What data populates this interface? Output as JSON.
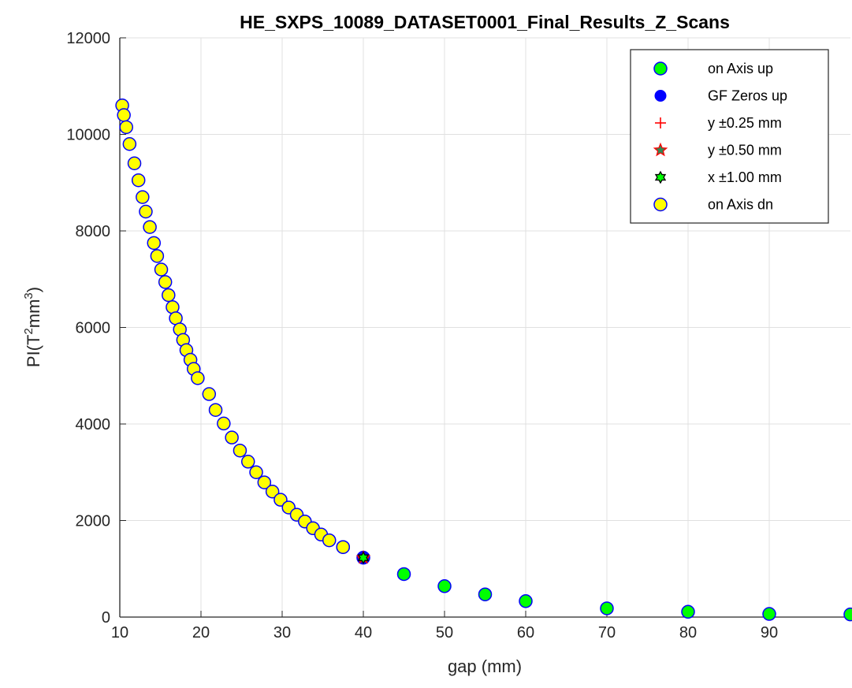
{
  "chart_data": {
    "type": "scatter",
    "title": "HE_SXPS_10089_DATASET0001_Final_Results_Z_Scans",
    "xlabel": "gap (mm)",
    "ylabel_main": "PI(T",
    "ylabel_sup1": "2",
    "ylabel_mid": "mm",
    "ylabel_sup2": "3",
    "ylabel_end": ")",
    "xlim": [
      10,
      100
    ],
    "ylim": [
      0,
      12000
    ],
    "xticks": [
      10,
      20,
      30,
      40,
      50,
      60,
      70,
      80,
      90
    ],
    "yticks": [
      0,
      2000,
      4000,
      6000,
      8000,
      10000,
      12000
    ],
    "grid": true,
    "legend_position": "top-right",
    "colors": {
      "green": "#00ff00",
      "blue": "#0000ff",
      "yellow": "#ffff00",
      "red": "#ff0000",
      "dark_green": "#006400",
      "grid": "#e0e0e0",
      "axis": "#262626"
    },
    "series": [
      {
        "name": "on Axis up",
        "marker": "circle-green",
        "points": [
          [
            37.5,
            1450
          ],
          [
            40,
            1230
          ],
          [
            45,
            890
          ],
          [
            50,
            640
          ],
          [
            55,
            470
          ],
          [
            60,
            330
          ],
          [
            70,
            180
          ],
          [
            80,
            110
          ],
          [
            90,
            65
          ],
          [
            100,
            55
          ]
        ]
      },
      {
        "name": "GF Zeros up",
        "marker": "dot-blue",
        "points": [
          [
            40,
            1230
          ]
        ]
      },
      {
        "name": "y ±0.25 mm",
        "marker": "plus-red",
        "points": [
          [
            40,
            1230
          ]
        ]
      },
      {
        "name": "y ±0.50 mm",
        "marker": "star-red",
        "points": [
          [
            40,
            1230
          ]
        ]
      },
      {
        "name": "x ±1.00 mm",
        "marker": "hexagram-green",
        "points": [
          [
            40,
            1230
          ]
        ]
      },
      {
        "name": "on Axis dn",
        "marker": "circle-yellow",
        "points": [
          [
            10.3,
            10600
          ],
          [
            10.5,
            10400
          ],
          [
            10.8,
            10150
          ],
          [
            11.2,
            9800
          ],
          [
            11.8,
            9400
          ],
          [
            12.3,
            9050
          ],
          [
            12.8,
            8700
          ],
          [
            13.2,
            8400
          ],
          [
            13.7,
            8080
          ],
          [
            14.2,
            7750
          ],
          [
            14.6,
            7480
          ],
          [
            15.1,
            7200
          ],
          [
            15.6,
            6940
          ],
          [
            16.0,
            6670
          ],
          [
            16.5,
            6420
          ],
          [
            16.9,
            6190
          ],
          [
            17.4,
            5960
          ],
          [
            17.8,
            5740
          ],
          [
            18.2,
            5530
          ],
          [
            18.7,
            5330
          ],
          [
            19.1,
            5140
          ],
          [
            19.6,
            4950
          ],
          [
            21.0,
            4620
          ],
          [
            21.8,
            4290
          ],
          [
            22.8,
            4010
          ],
          [
            23.8,
            3720
          ],
          [
            24.8,
            3450
          ],
          [
            25.8,
            3220
          ],
          [
            26.8,
            3000
          ],
          [
            27.8,
            2790
          ],
          [
            28.8,
            2600
          ],
          [
            29.8,
            2430
          ],
          [
            30.8,
            2270
          ],
          [
            31.8,
            2120
          ],
          [
            32.8,
            1980
          ],
          [
            33.8,
            1840
          ],
          [
            34.8,
            1710
          ],
          [
            35.8,
            1590
          ],
          [
            37.5,
            1450
          ]
        ]
      }
    ]
  }
}
